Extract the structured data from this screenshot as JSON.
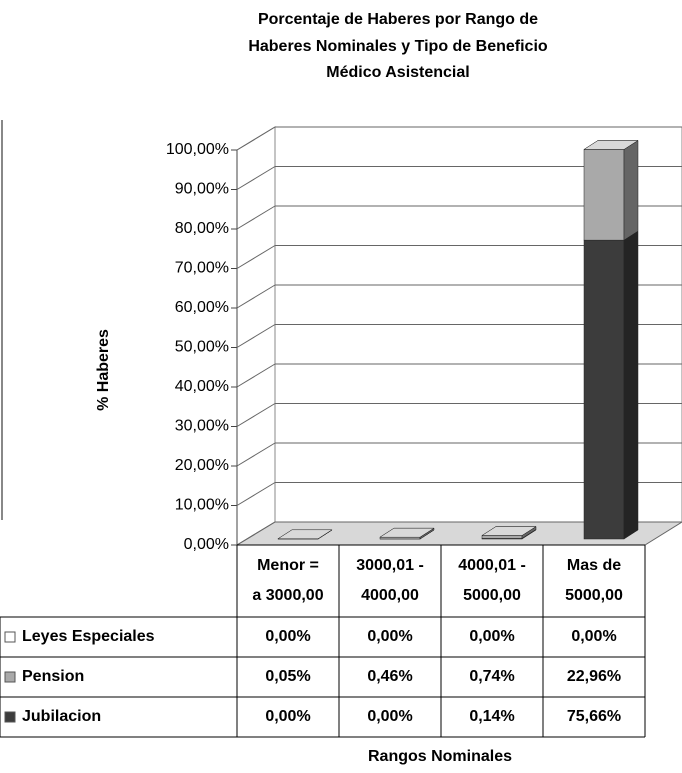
{
  "chart_data": {
    "type": "stacked_bar_3d",
    "title": [
      "Porcentaje de Haberes por Rango de",
      "Haberes Nominales y Tipo de Beneficio",
      "Médico Asistencial"
    ],
    "y_label": "% Haberes",
    "x_label": "Rangos Nominales",
    "categories": [
      [
        "Menor =",
        "a 3000,00"
      ],
      [
        "3000,01 -",
        "4000,00"
      ],
      [
        "4000,01 -",
        "5000,00"
      ],
      [
        "Mas de",
        "5000,00"
      ]
    ],
    "series": [
      {
        "name": "Leyes Especiales",
        "color": "#ffffff",
        "values": [
          0,
          0,
          0,
          0
        ],
        "value_labels": [
          "0,00%",
          "0,00%",
          "0,00%",
          "0,00%"
        ]
      },
      {
        "name": "Pension",
        "color": "#a9a9a9",
        "values": [
          0.05,
          0.46,
          0.74,
          22.96
        ],
        "value_labels": [
          "0,05%",
          "0,46%",
          "0,74%",
          "22,96%"
        ]
      },
      {
        "name": "Jubilacion",
        "color": "#3c3c3c",
        "values": [
          0,
          0,
          0.14,
          75.66
        ],
        "value_labels": [
          "0,00%",
          "0,00%",
          "0,14%",
          "75,66%"
        ]
      }
    ],
    "ylim": [
      0,
      100
    ],
    "yticks": [
      {
        "value": 0,
        "label": "0,00%"
      },
      {
        "value": 10,
        "label": "10,00%"
      },
      {
        "value": 20,
        "label": "20,00%"
      },
      {
        "value": 30,
        "label": "30,00%"
      },
      {
        "value": 40,
        "label": "40,00%"
      },
      {
        "value": 50,
        "label": "50,00%"
      },
      {
        "value": 60,
        "label": "60,00%"
      },
      {
        "value": 70,
        "label": "70,00%"
      },
      {
        "value": 80,
        "label": "80,00%"
      },
      {
        "value": 90,
        "label": "90,00%"
      },
      {
        "value": 100,
        "label": "100,00%"
      }
    ],
    "grid": true
  }
}
